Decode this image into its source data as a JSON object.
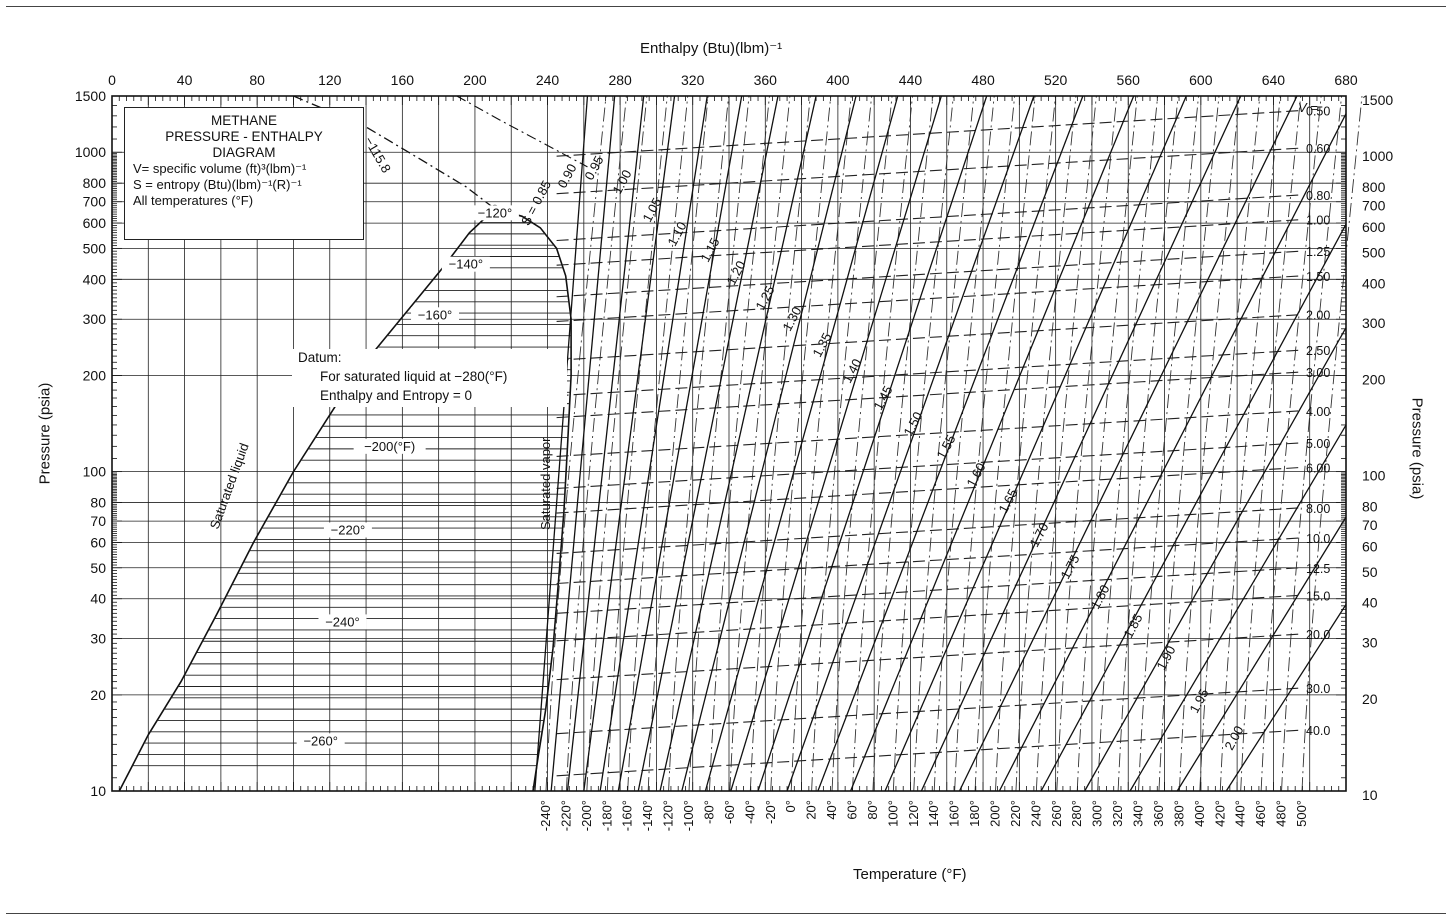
{
  "chart_data": {
    "type": "line",
    "title": "METHANE PRESSURE - ENTHALPY DIAGRAM",
    "title_lines": [
      "METHANE",
      "PRESSURE - ENTHALPY",
      "DIAGRAM"
    ],
    "legend_lines": [
      "V= specific volume (ft)³(lbm)⁻¹",
      "S = entropy (Btu)(lbm)⁻¹(R)⁻¹",
      "All temperatures (°F)"
    ],
    "xlabel_top": "Enthalpy (Btu)(lbm)⁻¹",
    "xlabel_bottom": "Temperature (°F)",
    "ylabel_left": "Pressure (psia)",
    "ylabel_right": "Pressure (psia)",
    "y_scale": "log",
    "xlim": [
      0,
      680
    ],
    "ylim": [
      10,
      1500
    ],
    "grid": true,
    "x_ticks": [
      "0",
      "40",
      "80",
      "120",
      "160",
      "200",
      "240",
      "280",
      "320",
      "360",
      "400",
      "440",
      "480",
      "520",
      "560",
      "600",
      "640",
      "680"
    ],
    "y_ticks_left": [
      "1500",
      "1000",
      "800",
      "700",
      "600",
      "500",
      "400",
      "300",
      "200",
      "100",
      "80",
      "70",
      "60",
      "50",
      "40",
      "30",
      "20",
      "10"
    ],
    "y_ticks_right": [
      "1500",
      "1000",
      "800",
      "700",
      "600",
      "500",
      "400",
      "300",
      "200",
      "100",
      "80",
      "70",
      "60",
      "50",
      "40",
      "30",
      "20",
      "10"
    ],
    "temperature_ticks": [
      "-240°",
      "-220°",
      "-200°",
      "-180°",
      "-160°",
      "-140°",
      "-120°",
      "-100°",
      "-80°",
      "-60°",
      "-40°",
      "-20°",
      "0°",
      "20°",
      "40°",
      "60°",
      "80°",
      "100°",
      "120°",
      "140°",
      "160°",
      "180°",
      "200°",
      "220°",
      "240°",
      "260°",
      "280°",
      "300°",
      "320°",
      "340°",
      "360°",
      "380°",
      "400°",
      "420°",
      "440°",
      "460°",
      "480°",
      "500°"
    ],
    "dome_isotherm_labels": [
      {
        "label": "−120°",
        "h": 211,
        "p": 630
      },
      {
        "label": "−140°",
        "h": 195,
        "p": 435
      },
      {
        "label": "−160°",
        "h": 178,
        "p": 302
      },
      {
        "label": "−200(°F)",
        "h": 153,
        "p": 117
      },
      {
        "label": "−220°",
        "h": 130,
        "p": 64
      },
      {
        "label": "−240°",
        "h": 127,
        "p": 33
      },
      {
        "label": "−260°",
        "h": 115,
        "p": 14
      }
    ],
    "critical_isotherm_label": "−115.8",
    "saturated_liquid_label": "Saturated liquid",
    "saturated_vapor_label": "Saturated vapor",
    "datum_lines": [
      "Datum:",
      "For saturated liquid at −280(°F)",
      "Enthalpy and Entropy = 0"
    ],
    "saturated_liquid_curve": [
      [
        4,
        10
      ],
      [
        20,
        15
      ],
      [
        38,
        22
      ],
      [
        58,
        36
      ],
      [
        78,
        60
      ],
      [
        100,
        100
      ],
      [
        123,
        160
      ],
      [
        145,
        240
      ],
      [
        165,
        330
      ],
      [
        183,
        440
      ],
      [
        197,
        560
      ],
      [
        211,
        665
      ]
    ],
    "saturated_vapor_curve": [
      [
        211,
        665
      ],
      [
        226,
        630
      ],
      [
        236,
        580
      ],
      [
        245,
        500
      ],
      [
        250,
        410
      ],
      [
        253,
        300
      ],
      [
        253,
        200
      ],
      [
        251,
        120
      ],
      [
        249,
        75
      ],
      [
        246,
        45
      ],
      [
        243,
        28
      ],
      [
        239,
        18
      ],
      [
        235,
        13
      ],
      [
        232,
        10
      ]
    ],
    "entropy_lines": [
      {
        "label": "S = 0.85",
        "value": 0.85,
        "h_at_10": 233,
        "h_at_1500": 262
      },
      {
        "label": "0.90",
        "value": 0.9,
        "h_at_10": 242,
        "h_at_1500": 277
      },
      {
        "label": "0.95",
        "value": 0.95,
        "h_at_10": 251,
        "h_at_1500": 293
      },
      {
        "label": "1.00",
        "value": 1.0,
        "h_at_10": 260,
        "h_at_1500": 310
      },
      {
        "label": "1.05",
        "value": 1.05,
        "h_at_10": 269,
        "h_at_1500": 328
      },
      {
        "label": "1.10",
        "value": 1.1,
        "h_at_10": 279,
        "h_at_1500": 347
      },
      {
        "label": "1.15",
        "value": 1.15,
        "h_at_10": 290,
        "h_at_1500": 367
      },
      {
        "label": "1.20",
        "value": 1.2,
        "h_at_10": 302,
        "h_at_1500": 388
      },
      {
        "label": "1.25",
        "value": 1.25,
        "h_at_10": 314,
        "h_at_1500": 410
      },
      {
        "label": "1.30",
        "value": 1.3,
        "h_at_10": 327,
        "h_at_1500": 433
      },
      {
        "label": "1.35",
        "value": 1.35,
        "h_at_10": 341,
        "h_at_1500": 457
      },
      {
        "label": "1.40",
        "value": 1.4,
        "h_at_10": 356,
        "h_at_1500": 482
      },
      {
        "label": "1.45",
        "value": 1.45,
        "h_at_10": 372,
        "h_at_1500": 508
      },
      {
        "label": "1.50",
        "value": 1.5,
        "h_at_10": 389,
        "h_at_1500": 535
      },
      {
        "label": "1.55",
        "value": 1.55,
        "h_at_10": 407,
        "h_at_1500": 563
      },
      {
        "label": "1.60",
        "value": 1.6,
        "h_at_10": 426,
        "h_at_1500": 592
      },
      {
        "label": "1.65",
        "value": 1.65,
        "h_at_10": 446,
        "h_at_1500": 622
      },
      {
        "label": "1.70",
        "value": 1.7,
        "h_at_10": 467,
        "h_at_1500": 653
      },
      {
        "label": "1.75",
        "value": 1.75,
        "h_at_10": 489,
        "h_at_1500": 685
      },
      {
        "label": "1.80",
        "value": 1.8,
        "h_at_10": 512,
        "h_at_1500": 718
      },
      {
        "label": "1.85",
        "value": 1.85,
        "h_at_10": 536,
        "h_at_1500": 752
      },
      {
        "label": "1.90",
        "value": 1.9,
        "h_at_10": 561,
        "h_at_1500": 787
      },
      {
        "label": "1.95",
        "value": 1.95,
        "h_at_10": 587,
        "h_at_1500": 823
      },
      {
        "label": "2.00",
        "value": 2.0,
        "h_at_10": 614,
        "h_at_1500": 860
      }
    ],
    "volume_lines": [
      {
        "label": "0.50",
        "value": 0.5,
        "p": 1350
      },
      {
        "label": "0.60",
        "value": 0.6,
        "p": 1030
      },
      {
        "label": "0.80",
        "value": 0.8,
        "p": 735
      },
      {
        "label": "1.00",
        "value": 1.0,
        "p": 615
      },
      {
        "label": "1.25",
        "value": 1.25,
        "p": 490
      },
      {
        "label": "1.50",
        "value": 1.5,
        "p": 410
      },
      {
        "label": "2.00",
        "value": 2.0,
        "p": 310
      },
      {
        "label": "2.50",
        "value": 2.5,
        "p": 240
      },
      {
        "label": "3.00",
        "value": 3.0,
        "p": 205
      },
      {
        "label": "4.00",
        "value": 4.0,
        "p": 155
      },
      {
        "label": "5.00",
        "value": 5.0,
        "p": 123
      },
      {
        "label": "6.00",
        "value": 6.0,
        "p": 103
      },
      {
        "label": "8.00",
        "value": 8.0,
        "p": 77
      },
      {
        "label": "10.0",
        "value": 10.0,
        "p": 62
      },
      {
        "label": "12.5",
        "value": 12.5,
        "p": 50
      },
      {
        "label": "15.0",
        "value": 15.0,
        "p": 41
      },
      {
        "label": "20.0",
        "value": 20.0,
        "p": 31
      },
      {
        "label": "30.0",
        "value": 30.0,
        "p": 21
      },
      {
        "label": "40.0",
        "value": 40.0,
        "p": 15.5
      }
    ],
    "volume_symbol": "V ="
  }
}
